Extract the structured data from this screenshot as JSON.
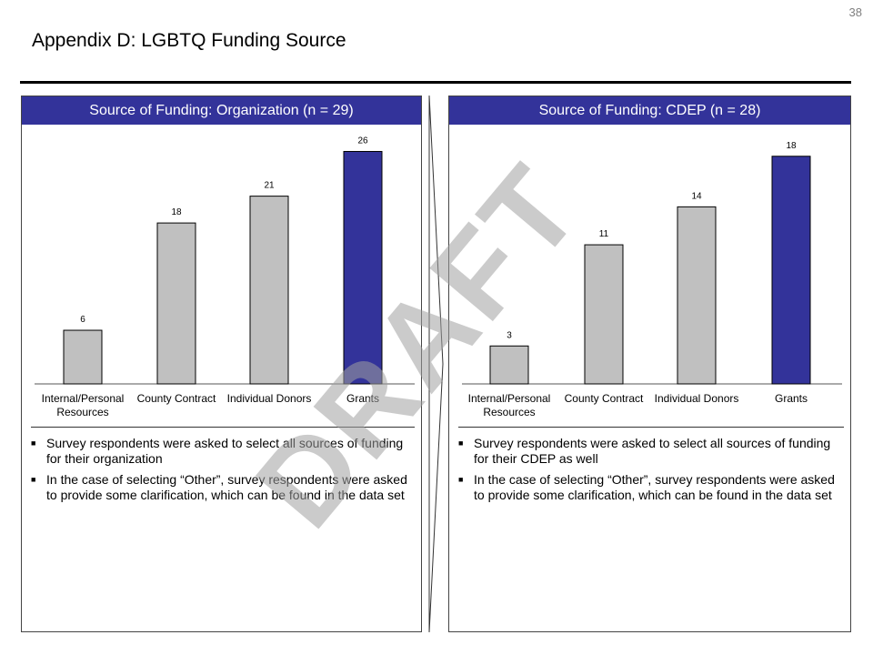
{
  "page_number": "38",
  "title": "Appendix D: LGBTQ Funding Source",
  "watermark": "DRAFT",
  "colors": {
    "header": "#33339a",
    "bar_default": "#c0c0c0",
    "bar_highlight": "#33339a"
  },
  "panels": [
    {
      "header": "Source of Funding: Organization (n = 29)",
      "notes": [
        "Survey respondents were asked to select all sources of funding for their organization",
        "In the case of selecting “Other”, survey respondents were asked to provide some clarification, which can be found in the data set"
      ]
    },
    {
      "header": "Source of Funding: CDEP (n = 28)",
      "notes": [
        "Survey respondents were asked to select all sources of funding for their CDEP as well",
        "In the case of selecting “Other”, survey respondents were asked to provide some clarification, which can be found in the data set"
      ]
    }
  ],
  "chart_data": [
    {
      "type": "bar",
      "title": "Source of Funding: Organization (n = 29)",
      "categories": [
        [
          "Internal/Personal",
          "Resources"
        ],
        [
          "County Contract"
        ],
        [
          "Individual Donors"
        ],
        [
          "Grants"
        ]
      ],
      "values": [
        6,
        18,
        21,
        26
      ],
      "highlight_index": 3,
      "ylim": [
        0,
        29
      ],
      "grid": false
    },
    {
      "type": "bar",
      "title": "Source of Funding: CDEP (n = 28)",
      "categories": [
        [
          "Internal/Personal",
          "Resources"
        ],
        [
          "County Contract"
        ],
        [
          "Individual Donors"
        ],
        [
          "Grants"
        ]
      ],
      "values": [
        3,
        11,
        14,
        18
      ],
      "highlight_index": 3,
      "ylim": [
        0,
        20.5
      ],
      "grid": false
    }
  ]
}
